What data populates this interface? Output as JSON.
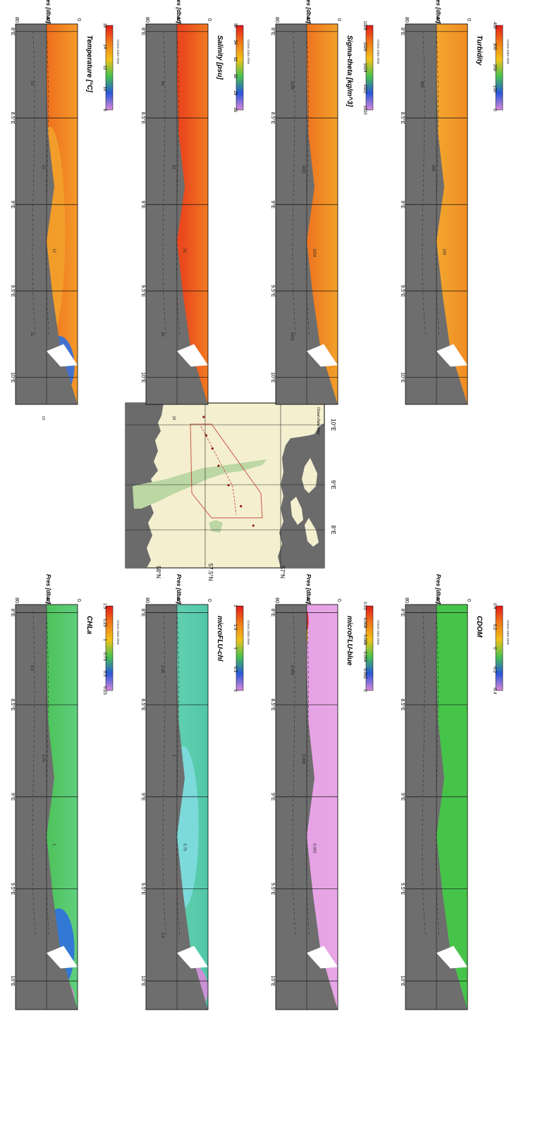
{
  "figure": {
    "title": "",
    "watermark": "Ocean Data View",
    "colors": {
      "land": "#6b6b6b",
      "sea": "#f4efcf",
      "shallow": "#bcd6a4",
      "track": "#c0392b"
    }
  },
  "map": {
    "lat_ticks": [
      "58°N",
      "57.5°N",
      "57°N"
    ],
    "lon_ticks": [
      "8°E",
      "9°E",
      "10°E"
    ],
    "stations": [
      {
        "lon": 8.08,
        "lat": 57.22
      },
      {
        "lon": 8.45,
        "lat": 57.32
      },
      {
        "lon": 8.85,
        "lat": 57.42
      },
      {
        "lon": 9.22,
        "lat": 57.5
      },
      {
        "lon": 9.55,
        "lat": 57.55
      },
      {
        "lon": 9.8,
        "lat": 57.6
      },
      {
        "lon": 10.15,
        "lat": 57.62
      }
    ]
  },
  "chart_data": [
    {
      "type": "heatmap",
      "id": "temperature",
      "title": "Temperature [°C]",
      "ylabel": "Pres [dbar]",
      "x_ticks": [
        "8°E",
        "8.5°E",
        "9°E",
        "9.5°E",
        "10°E"
      ],
      "x_values": [
        8,
        8.5,
        9,
        9.5,
        10
      ],
      "y_ticks": [
        "0",
        "40",
        "80"
      ],
      "ylim": [
        80,
        0
      ],
      "colorbar": {
        "ticks": [
          "16",
          "14",
          "12",
          "10",
          "8"
        ],
        "colors": [
          "#e11b1b",
          "#f07a1a",
          "#f2c21b",
          "#49c24f",
          "#2a58d9",
          "#d98ad9"
        ]
      },
      "contour_labels": [
        "13",
        "13",
        "12",
        "11",
        "10"
      ],
      "seafloor_depth": [
        40,
        40,
        38,
        30,
        40,
        32,
        22,
        0
      ]
    },
    {
      "type": "heatmap",
      "id": "salinity",
      "title": "Salinity [psu]",
      "ylabel": "Pres [dbar]",
      "x_ticks": [
        "8°E",
        "8.5°E",
        "9°E",
        "9.5°E",
        "10°E"
      ],
      "x_values": [
        8,
        8.5,
        9,
        9.5,
        10
      ],
      "y_ticks": [
        "0",
        "40",
        "80"
      ],
      "ylim": [
        80,
        0
      ],
      "colorbar": {
        "ticks": [
          "36",
          "34",
          "32",
          "30",
          "28",
          "26"
        ],
        "colors": [
          "#e11b1b",
          "#f07a1a",
          "#f2c21b",
          "#49c24f",
          "#2a58d9",
          "#d98ad9"
        ]
      },
      "contour_labels": [
        "34",
        "33",
        "32",
        "30",
        "28"
      ],
      "seafloor_depth": [
        40,
        40,
        38,
        30,
        40,
        32,
        22,
        0
      ]
    },
    {
      "type": "heatmap",
      "id": "sigma_theta",
      "title": "Sigma-theta [kg/m^3]",
      "ylabel": "Pres [dbar]",
      "x_ticks": [
        "8°E",
        "8.5°E",
        "9°E",
        "9.5°E",
        "10°E"
      ],
      "x_values": [
        8,
        8.5,
        9,
        9.5,
        10
      ],
      "y_ticks": [
        "0",
        "40",
        "80"
      ],
      "ylim": [
        80,
        0
      ],
      "colorbar": {
        "ticks": [
          "1028",
          "1026",
          "1024",
          "1022",
          "1020"
        ],
        "colors": [
          "#e11b1b",
          "#f07a1a",
          "#f2c21b",
          "#49c24f",
          "#2a58d9",
          "#d98ad9"
        ]
      },
      "contour_labels": [
        "1026",
        "1025",
        "1024",
        "1022"
      ],
      "seafloor_depth": [
        40,
        40,
        38,
        30,
        40,
        32,
        22,
        0
      ]
    },
    {
      "type": "heatmap",
      "id": "turbidity",
      "title": "Turbidity",
      "ylabel": "Pres [dbar]",
      "x_ticks": [
        "8°E",
        "8.5°E",
        "9°E",
        "9.5°E",
        "10°E"
      ],
      "x_values": [
        8,
        8.5,
        9,
        9.5,
        10
      ],
      "y_ticks": [
        "0",
        "40",
        "80"
      ],
      "ylim": [
        80,
        0
      ],
      "colorbar": {
        "ticks": [
          "400",
          "300",
          "200",
          "100",
          "0"
        ],
        "colors": [
          "#e11b1b",
          "#f07a1a",
          "#f2c21b",
          "#49c24f",
          "#2a58d9",
          "#d98ad9"
        ]
      },
      "contour_labels": [
        "300",
        "200",
        "100"
      ],
      "seafloor_depth": [
        40,
        40,
        38,
        30,
        40,
        32,
        22,
        0
      ]
    },
    {
      "type": "heatmap",
      "id": "chla",
      "title": "CHLa",
      "ylabel": "Pres [dbar]",
      "x_ticks": [
        "8°E",
        "8.5°E",
        "9°E",
        "9.5°E",
        "10°E"
      ],
      "x_values": [
        8,
        8.5,
        9,
        9.5,
        10
      ],
      "y_ticks": [
        "0",
        "40",
        "80"
      ],
      "ylim": [
        80,
        0
      ],
      "colorbar": {
        "ticks": [
          "1.5",
          "1.25",
          "1",
          "0.75",
          "0.5",
          "0.25"
        ],
        "colors": [
          "#e11b1b",
          "#f07a1a",
          "#f2c21b",
          "#49c24f",
          "#2a58d9",
          "#d98ad9"
        ]
      },
      "contour_labels": [
        "0.5",
        "0.75",
        "1"
      ],
      "seafloor_depth": [
        40,
        40,
        38,
        30,
        40,
        32,
        22,
        0
      ]
    },
    {
      "type": "heatmap",
      "id": "microflu_chl",
      "title": "microFLU-chl",
      "ylabel": "Pres [dbar]",
      "x_ticks": [
        "8°E",
        "8.5°E",
        "9°E",
        "9.5°E",
        "10°E"
      ],
      "x_values": [
        8,
        8.5,
        9,
        9.5,
        10
      ],
      "y_ticks": [
        "0",
        "40",
        "80"
      ],
      "ylim": [
        80,
        0
      ],
      "colorbar": {
        "ticks": [
          "2",
          "1.5",
          "1",
          "0.5",
          "0"
        ],
        "colors": [
          "#e11b1b",
          "#f07a1a",
          "#f2c21b",
          "#49c24f",
          "#2a58d9",
          "#d98ad9"
        ]
      },
      "contour_labels": [
        "1.25",
        "1",
        "0.75",
        "0.5"
      ],
      "seafloor_depth": [
        40,
        40,
        38,
        30,
        40,
        32,
        22,
        0
      ]
    },
    {
      "type": "heatmap",
      "id": "microflu_blue",
      "title": "microFLU-blue",
      "ylabel": "Pres [dbar]",
      "x_ticks": [
        "8°E",
        "8.5°E",
        "9°E",
        "9.5°E",
        "10°E"
      ],
      "x_values": [
        8,
        8.5,
        9,
        9.5,
        10
      ],
      "y_ticks": [
        "0",
        "40",
        "80"
      ],
      "ylim": [
        80,
        0
      ],
      "colorbar": {
        "ticks": [
          "0.01",
          "0.008",
          "0.006",
          "0.004",
          "0.002",
          "0"
        ],
        "colors": [
          "#e11b1b",
          "#f07a1a",
          "#f2c21b",
          "#49c24f",
          "#2a58d9",
          "#d98ad9"
        ]
      },
      "contour_labels": [
        "0.004",
        "0.006",
        "0.002"
      ],
      "seafloor_depth": [
        40,
        40,
        38,
        30,
        40,
        32,
        22,
        0
      ]
    },
    {
      "type": "heatmap",
      "id": "cdom",
      "title": "CDOM",
      "ylabel": "Pres [dbar]",
      "x_ticks": [
        "8°E",
        "8.5°E",
        "9°E",
        "9.5°E",
        "10°E"
      ],
      "x_values": [
        8,
        8.5,
        9,
        9.5,
        10
      ],
      "y_ticks": [
        "0",
        "40",
        "80"
      ],
      "ylim": [
        80,
        0
      ],
      "colorbar": {
        "ticks": [
          "0.4",
          "0.2",
          "0",
          "-0.2",
          "-0.4"
        ],
        "colors": [
          "#e11b1b",
          "#f07a1a",
          "#f2c21b",
          "#49c24f",
          "#2a58d9",
          "#d98ad9"
        ]
      },
      "contour_labels": [],
      "seafloor_depth": [
        40,
        40,
        38,
        30,
        40,
        32,
        22,
        0
      ]
    }
  ]
}
